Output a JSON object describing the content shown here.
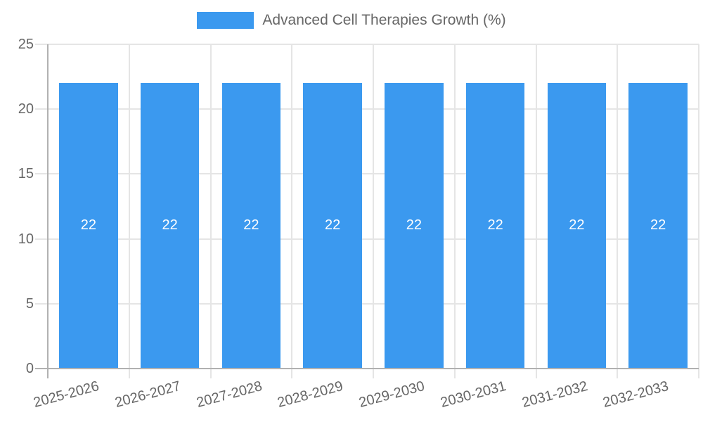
{
  "legend": {
    "label": "Advanced Cell Therapies Growth (%)"
  },
  "chart_data": {
    "type": "bar",
    "title": "Advanced Cell Therapies Growth (%)",
    "legend_position": "top",
    "categories": [
      "2025-2026",
      "2026-2027",
      "2027-2028",
      "2028-2029",
      "2029-2030",
      "2030-2031",
      "2031-2032",
      "2032-2033"
    ],
    "values": [
      22,
      22,
      22,
      22,
      22,
      22,
      22,
      22
    ],
    "bar_value_labels": [
      "22",
      "22",
      "22",
      "22",
      "22",
      "22",
      "22",
      "22"
    ],
    "xlabel": "",
    "ylabel": "",
    "ylim": [
      0,
      25
    ],
    "yticks": [
      0,
      5,
      10,
      15,
      20,
      25
    ],
    "grid": true,
    "x_tick_rotation_deg": -15,
    "colors": {
      "bar": "#3b99ef",
      "bar_value_label": "#ffffff",
      "tick_text": "#666666",
      "legend_text": "#666666",
      "gridline": "#e5e5e5",
      "axis_line": "#b1b1b1",
      "background": "#ffffff"
    }
  }
}
